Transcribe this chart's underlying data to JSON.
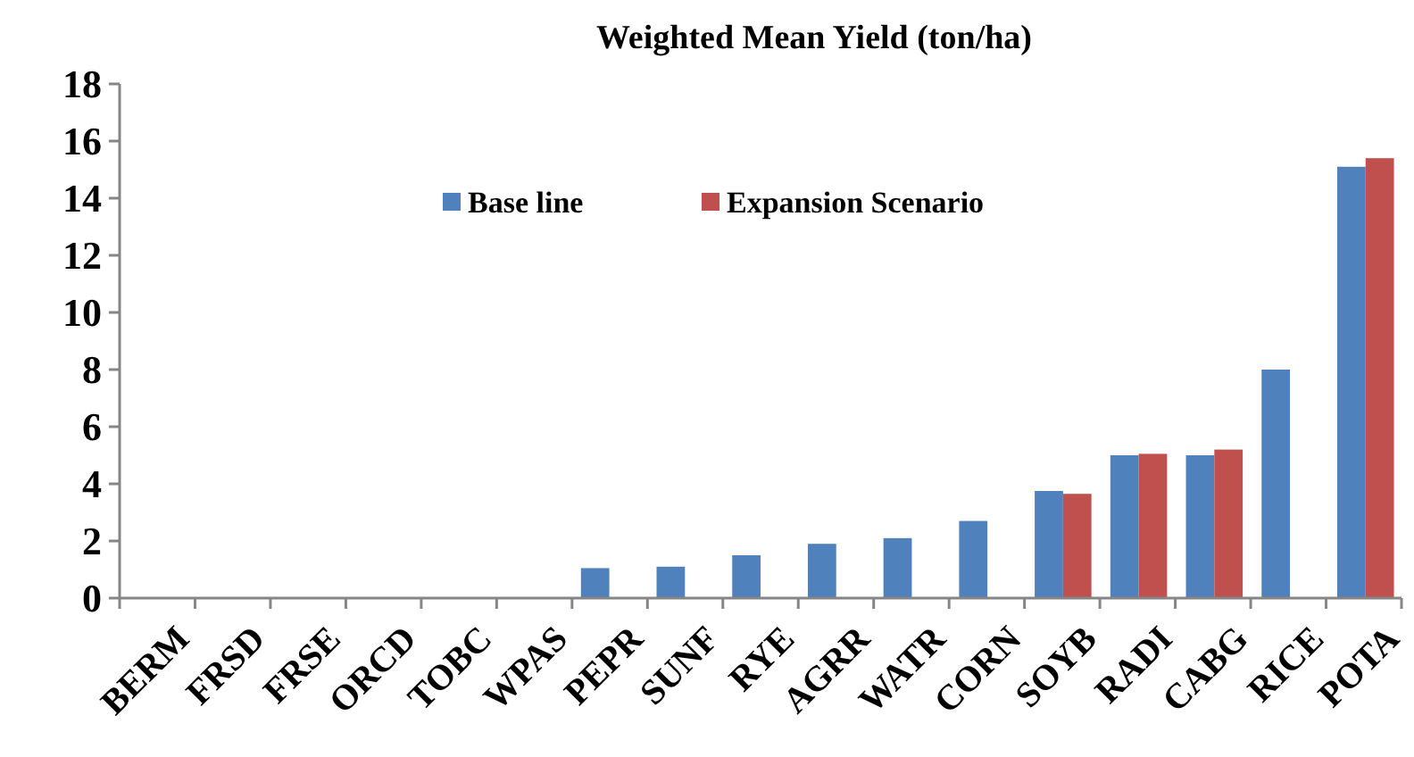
{
  "chart_data": {
    "type": "bar",
    "title": "Weighted Mean Yield (ton/ha)",
    "categories": [
      "BERM",
      "FRSD",
      "FRSE",
      "ORCD",
      "TOBC",
      "WPAS",
      "PEPR",
      "SUNF",
      "RYE",
      "AGRR",
      "WATR",
      "CORN",
      "SOYB",
      "RADI",
      "CABG",
      "RICE",
      "POTA"
    ],
    "series": [
      {
        "name": "Base line",
        "color": "#4f81bd",
        "values": [
          null,
          null,
          null,
          null,
          null,
          null,
          1.05,
          1.1,
          1.5,
          1.9,
          2.1,
          2.7,
          3.75,
          5.0,
          5.0,
          8.0,
          15.1
        ]
      },
      {
        "name": "Expansion Scenario",
        "color": "#c0504d",
        "values": [
          null,
          null,
          null,
          null,
          null,
          null,
          null,
          null,
          null,
          null,
          null,
          null,
          3.65,
          5.05,
          5.2,
          null,
          15.4
        ]
      }
    ],
    "ylim": [
      0,
      18
    ],
    "yticks": [
      0,
      2,
      4,
      6,
      8,
      10,
      12,
      14,
      16,
      18
    ],
    "grid": false,
    "legend": "top"
  }
}
